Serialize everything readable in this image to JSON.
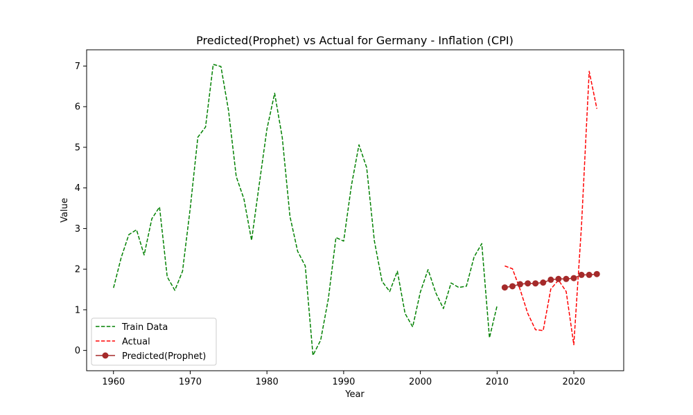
{
  "chart_data": {
    "type": "line",
    "title": "Predicted(Prophet) vs Actual for Germany - Inflation (CPI)",
    "xlabel": "Year",
    "ylabel": "Value",
    "xlim": [
      1956.5,
      2026.5
    ],
    "ylim": [
      -0.5,
      7.4
    ],
    "xticks": [
      1960,
      1970,
      1980,
      1990,
      2000,
      2010,
      2020
    ],
    "yticks": [
      0,
      1,
      2,
      3,
      4,
      5,
      6,
      7
    ],
    "grid": false,
    "legend_position": "lower-left",
    "series": [
      {
        "name": "Train Data",
        "color": "#008000",
        "style": "dashed",
        "x": [
          1960,
          1961,
          1962,
          1963,
          1964,
          1965,
          1966,
          1967,
          1968,
          1969,
          1970,
          1971,
          1972,
          1973,
          1974,
          1975,
          1976,
          1977,
          1978,
          1979,
          1980,
          1981,
          1982,
          1983,
          1984,
          1985,
          1986,
          1987,
          1988,
          1989,
          1990,
          1991,
          1992,
          1993,
          1994,
          1995,
          1996,
          1997,
          1998,
          1999,
          2000,
          2001,
          2002,
          2003,
          2004,
          2005,
          2006,
          2007,
          2008,
          2009,
          2010
        ],
        "y": [
          1.54,
          2.28,
          2.85,
          2.97,
          2.35,
          3.24,
          3.53,
          1.81,
          1.48,
          1.95,
          3.5,
          5.25,
          5.5,
          7.04,
          6.99,
          5.9,
          4.28,
          3.73,
          2.71,
          4.09,
          5.45,
          6.33,
          5.24,
          3.3,
          2.44,
          2.08,
          -0.12,
          0.25,
          1.27,
          2.78,
          2.69,
          4.05,
          5.06,
          4.5,
          2.7,
          1.7,
          1.45,
          1.95,
          0.91,
          0.58,
          1.44,
          1.99,
          1.42,
          1.03,
          1.66,
          1.55,
          1.58,
          2.3,
          2.63,
          0.31,
          1.1
        ]
      },
      {
        "name": "Actual",
        "color": "#ff0000",
        "style": "dashed",
        "x": [
          2011,
          2012,
          2013,
          2014,
          2015,
          2016,
          2017,
          2018,
          2019,
          2020,
          2021,
          2022,
          2023
        ],
        "y": [
          2.08,
          2.01,
          1.5,
          0.91,
          0.51,
          0.49,
          1.51,
          1.73,
          1.45,
          0.14,
          3.07,
          6.87,
          5.95
        ]
      },
      {
        "name": "Predicted(Prophet)",
        "color": "#a52a2a",
        "style": "solid-marker",
        "x": [
          2011,
          2012,
          2013,
          2014,
          2015,
          2016,
          2017,
          2018,
          2019,
          2020,
          2021,
          2022,
          2023
        ],
        "y": [
          1.55,
          1.58,
          1.63,
          1.65,
          1.65,
          1.67,
          1.74,
          1.76,
          1.76,
          1.78,
          1.86,
          1.86,
          1.88
        ]
      }
    ]
  }
}
